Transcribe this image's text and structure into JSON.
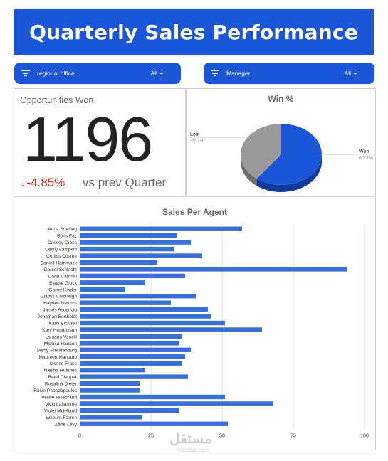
{
  "header": {
    "title": "Quarterly Sales Performance"
  },
  "filters": [
    {
      "label": "regional office",
      "value": "All"
    },
    {
      "label": "Manager",
      "value": "All"
    }
  ],
  "kpi": {
    "title": "Opportunities Won",
    "value": "1196",
    "delta": "-4.85%",
    "comparison": "vs prev Quarter"
  },
  "win_chart": {
    "title": "Win %",
    "lost": {
      "label": "Lost",
      "pct": "39.7%"
    },
    "won": {
      "label": "Won",
      "pct": "60.3%"
    }
  },
  "chart_data": [
    {
      "type": "pie",
      "title": "Win %",
      "labels": [
        "Lost",
        "Won"
      ],
      "values": [
        39.7,
        60.3
      ],
      "colors": [
        "#999999",
        "#1a56d6"
      ]
    },
    {
      "type": "bar",
      "orientation": "horizontal",
      "title": "Sales Per Agent",
      "categories": [
        "Anna Snelling",
        "Boris Faz",
        "Cassey Cress",
        "Cecily Lampkin",
        "Corliss Cosme",
        "Daniell Hammack",
        "Darcel Schlecht",
        "Donn Cantrell",
        "Elease Gluck",
        "Garret Kinder",
        "Gladys Colclough",
        "Hayden Neloms",
        "James Ascencio",
        "Jonathan Berthelot",
        "Kami Bicknell",
        "Kary Hendrixson",
        "Lajuana Vencill",
        "Markita Hansen",
        "Marty Freudenburg",
        "Maureen Marcano",
        "Moses Frase",
        "Niesha Huffines",
        "Reed Clapper",
        "Rosalina Dieter",
        "Rosie Papadopoulos",
        "Versie Hillebrand",
        "Vicki Laflamme",
        "Violet Mclelland",
        "Wilburn Farren",
        "Zane Levy"
      ],
      "values": [
        57,
        34,
        39,
        33,
        43,
        27,
        94,
        37,
        23,
        16,
        41,
        32,
        45,
        46,
        51,
        64,
        36,
        35,
        39,
        37,
        36,
        23,
        38,
        21,
        21,
        51,
        68,
        35,
        22,
        52
      ],
      "xticks": [
        0,
        25,
        50,
        75,
        100
      ],
      "xlim": [
        0,
        100
      ],
      "grid": true,
      "color": "#3a6fd8"
    }
  ],
  "watermark": {
    "text": "مستقل",
    "sub": "mostaql.com"
  }
}
